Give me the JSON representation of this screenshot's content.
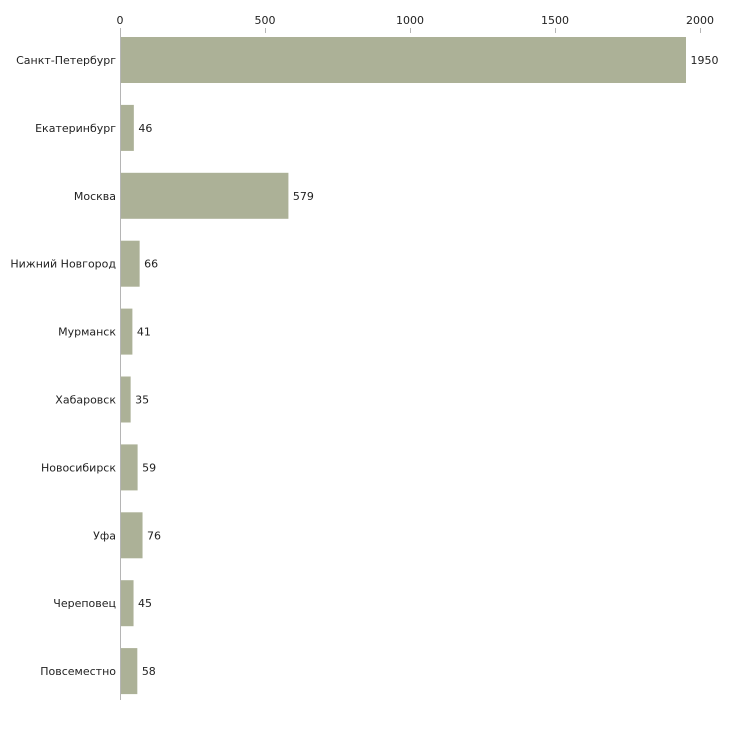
{
  "chart_data": {
    "type": "bar",
    "orientation": "horizontal",
    "title": "",
    "xlabel": "",
    "ylabel": "",
    "categories": [
      "Санкт-Петербург",
      "Екатеринбург",
      "Москва",
      "Нижний Новгород",
      "Мурманск",
      "Хабаровск",
      "Новосибирск",
      "Уфа",
      "Череповец",
      "Повсеместно"
    ],
    "values": [
      1950,
      46,
      579,
      66,
      41,
      35,
      59,
      76,
      45,
      58
    ],
    "xlim": [
      0,
      2000
    ],
    "xticks": [
      0,
      500,
      1000,
      1500,
      2000
    ],
    "tick_position": "top",
    "grid": false,
    "legend": "none",
    "colors": {
      "bar": "#acb197",
      "axis": "#b5b5b5",
      "text": "#222222"
    }
  }
}
